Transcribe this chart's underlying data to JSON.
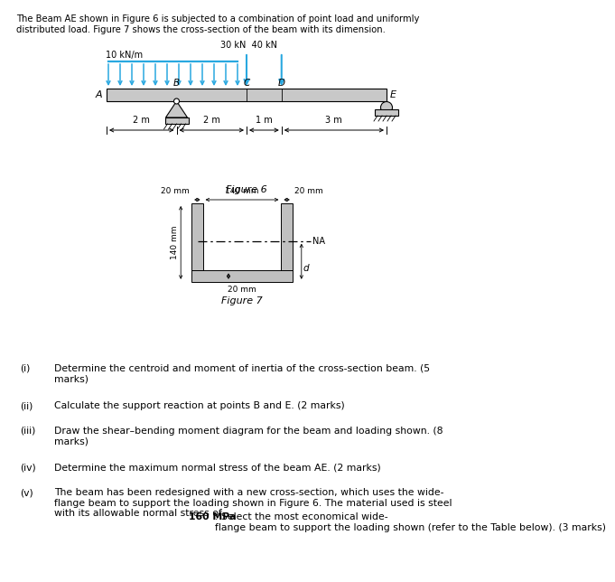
{
  "bg": "#ffffff",
  "title": "The Beam AE shown in Figure 6 is subjected to a combination of point load and uniformly\ndistributed load. Figure 7 shows the cross-section of the beam with its dimension.",
  "arrow_color": "#29a8e0",
  "beam_color": "#c8c8c8",
  "section_color": "#c0c0c0",
  "fig6_label": "Figure 6",
  "fig7_label": "Figure 7",
  "questions": [
    {
      "num": "(i)",
      "text": "Determine the centroid and moment of inertia of the cross-section beam. (5\nmarks)"
    },
    {
      "num": "(ii)",
      "text": "Calculate the support reaction at points B and E. (2 marks)"
    },
    {
      "num": "(iii)",
      "text": "Draw the shear–bending moment diagram for the beam and loading shown. (8\nmarks)"
    },
    {
      "num": "(iv)",
      "text": "Determine the maximum normal stress of the beam AE. (2 marks)"
    },
    {
      "num": "(v)",
      "text_pre": "The beam has been redesigned with a new cross-section, which uses the wide-\nflange beam to support the loading shown in Figure 6. The material used is steel\nwith its allowable normal stress of ",
      "text_bold": "160 MPa",
      "text_post": ". Select the most economical wide-\nflange beam to support the loading shown (refer to the Table below). (3 marks)"
    }
  ]
}
